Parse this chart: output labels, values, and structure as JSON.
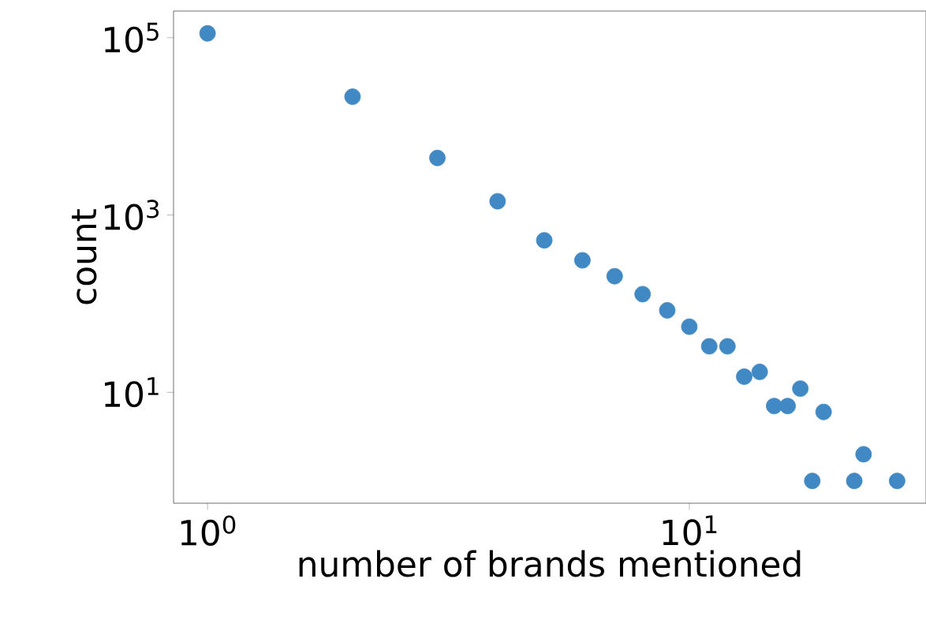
{
  "chart_data": {
    "type": "scatter",
    "xlabel": "number of brands mentioned",
    "ylabel": "count",
    "log": "xy",
    "marker": "circle",
    "x": [
      1,
      2,
      3,
      4,
      5,
      6,
      7,
      8,
      9,
      10,
      11,
      12,
      13,
      14,
      15,
      16,
      17,
      18,
      19,
      22,
      23,
      27
    ],
    "values": [
      112000,
      21600,
      4400,
      1430,
      518,
      308,
      204,
      128,
      84,
      55,
      33,
      33,
      15,
      17,
      7,
      7,
      11,
      1,
      6,
      1,
      2,
      1
    ],
    "color": "#4189c4",
    "xlim": [
      0.85,
      31
    ],
    "ylim": [
      0.56,
      200000
    ],
    "xticks": [
      {
        "value": 1,
        "label": "10$^{0}$"
      },
      {
        "value": 10,
        "label": "10$^{1}$"
      }
    ],
    "yticks": [
      {
        "value": 10,
        "label": "10$^{1}$"
      },
      {
        "value": 1000,
        "label": "10$^{3}$"
      },
      {
        "value": 100000,
        "label": "10$^{5}$"
      }
    ]
  }
}
